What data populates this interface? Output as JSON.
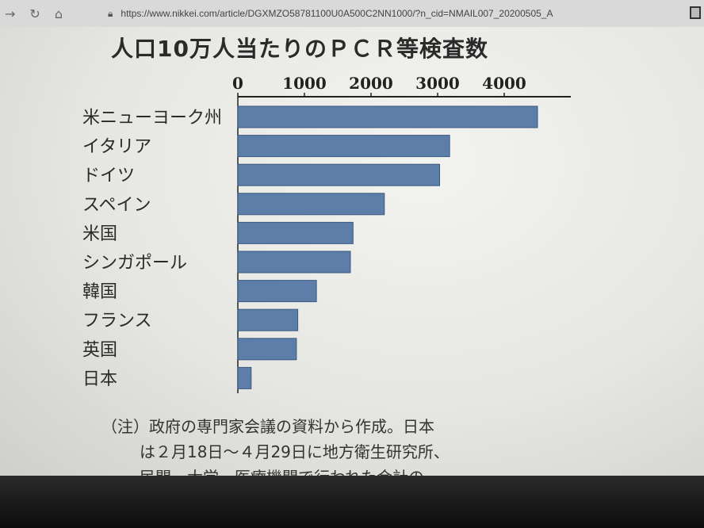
{
  "browser": {
    "url": "https://www.nikkei.com/article/DGXMZO58781100U0A500C2NN1000/?n_cid=NMAIL007_20200505_A",
    "icons": [
      "back-icon",
      "refresh-icon",
      "home-icon",
      "lock-icon",
      "reader-icon"
    ]
  },
  "chart_data": {
    "type": "bar",
    "orientation": "horizontal",
    "title": "人口10万人当たりのＰＣＲ等検査数",
    "categories": [
      "米ニューヨーク州",
      "イタリア",
      "ドイツ",
      "スペイン",
      "米国",
      "シンガポール",
      "韓国",
      "フランス",
      "英国",
      "日本"
    ],
    "values": [
      4500,
      3180,
      3030,
      2200,
      1730,
      1690,
      1180,
      900,
      880,
      200
    ],
    "xticks": [
      0,
      1000,
      2000,
      3000,
      4000
    ],
    "xlim": [
      0,
      5000
    ],
    "grid": false,
    "bar_color": "#5d7ea8"
  },
  "note": {
    "line1": "（注）政府の専門家会議の資料から作成。日本",
    "line2": "は２月18日～４月29日に地方衛生研究所、",
    "line3": "民間、大学、医療機関で行われた合計の"
  }
}
